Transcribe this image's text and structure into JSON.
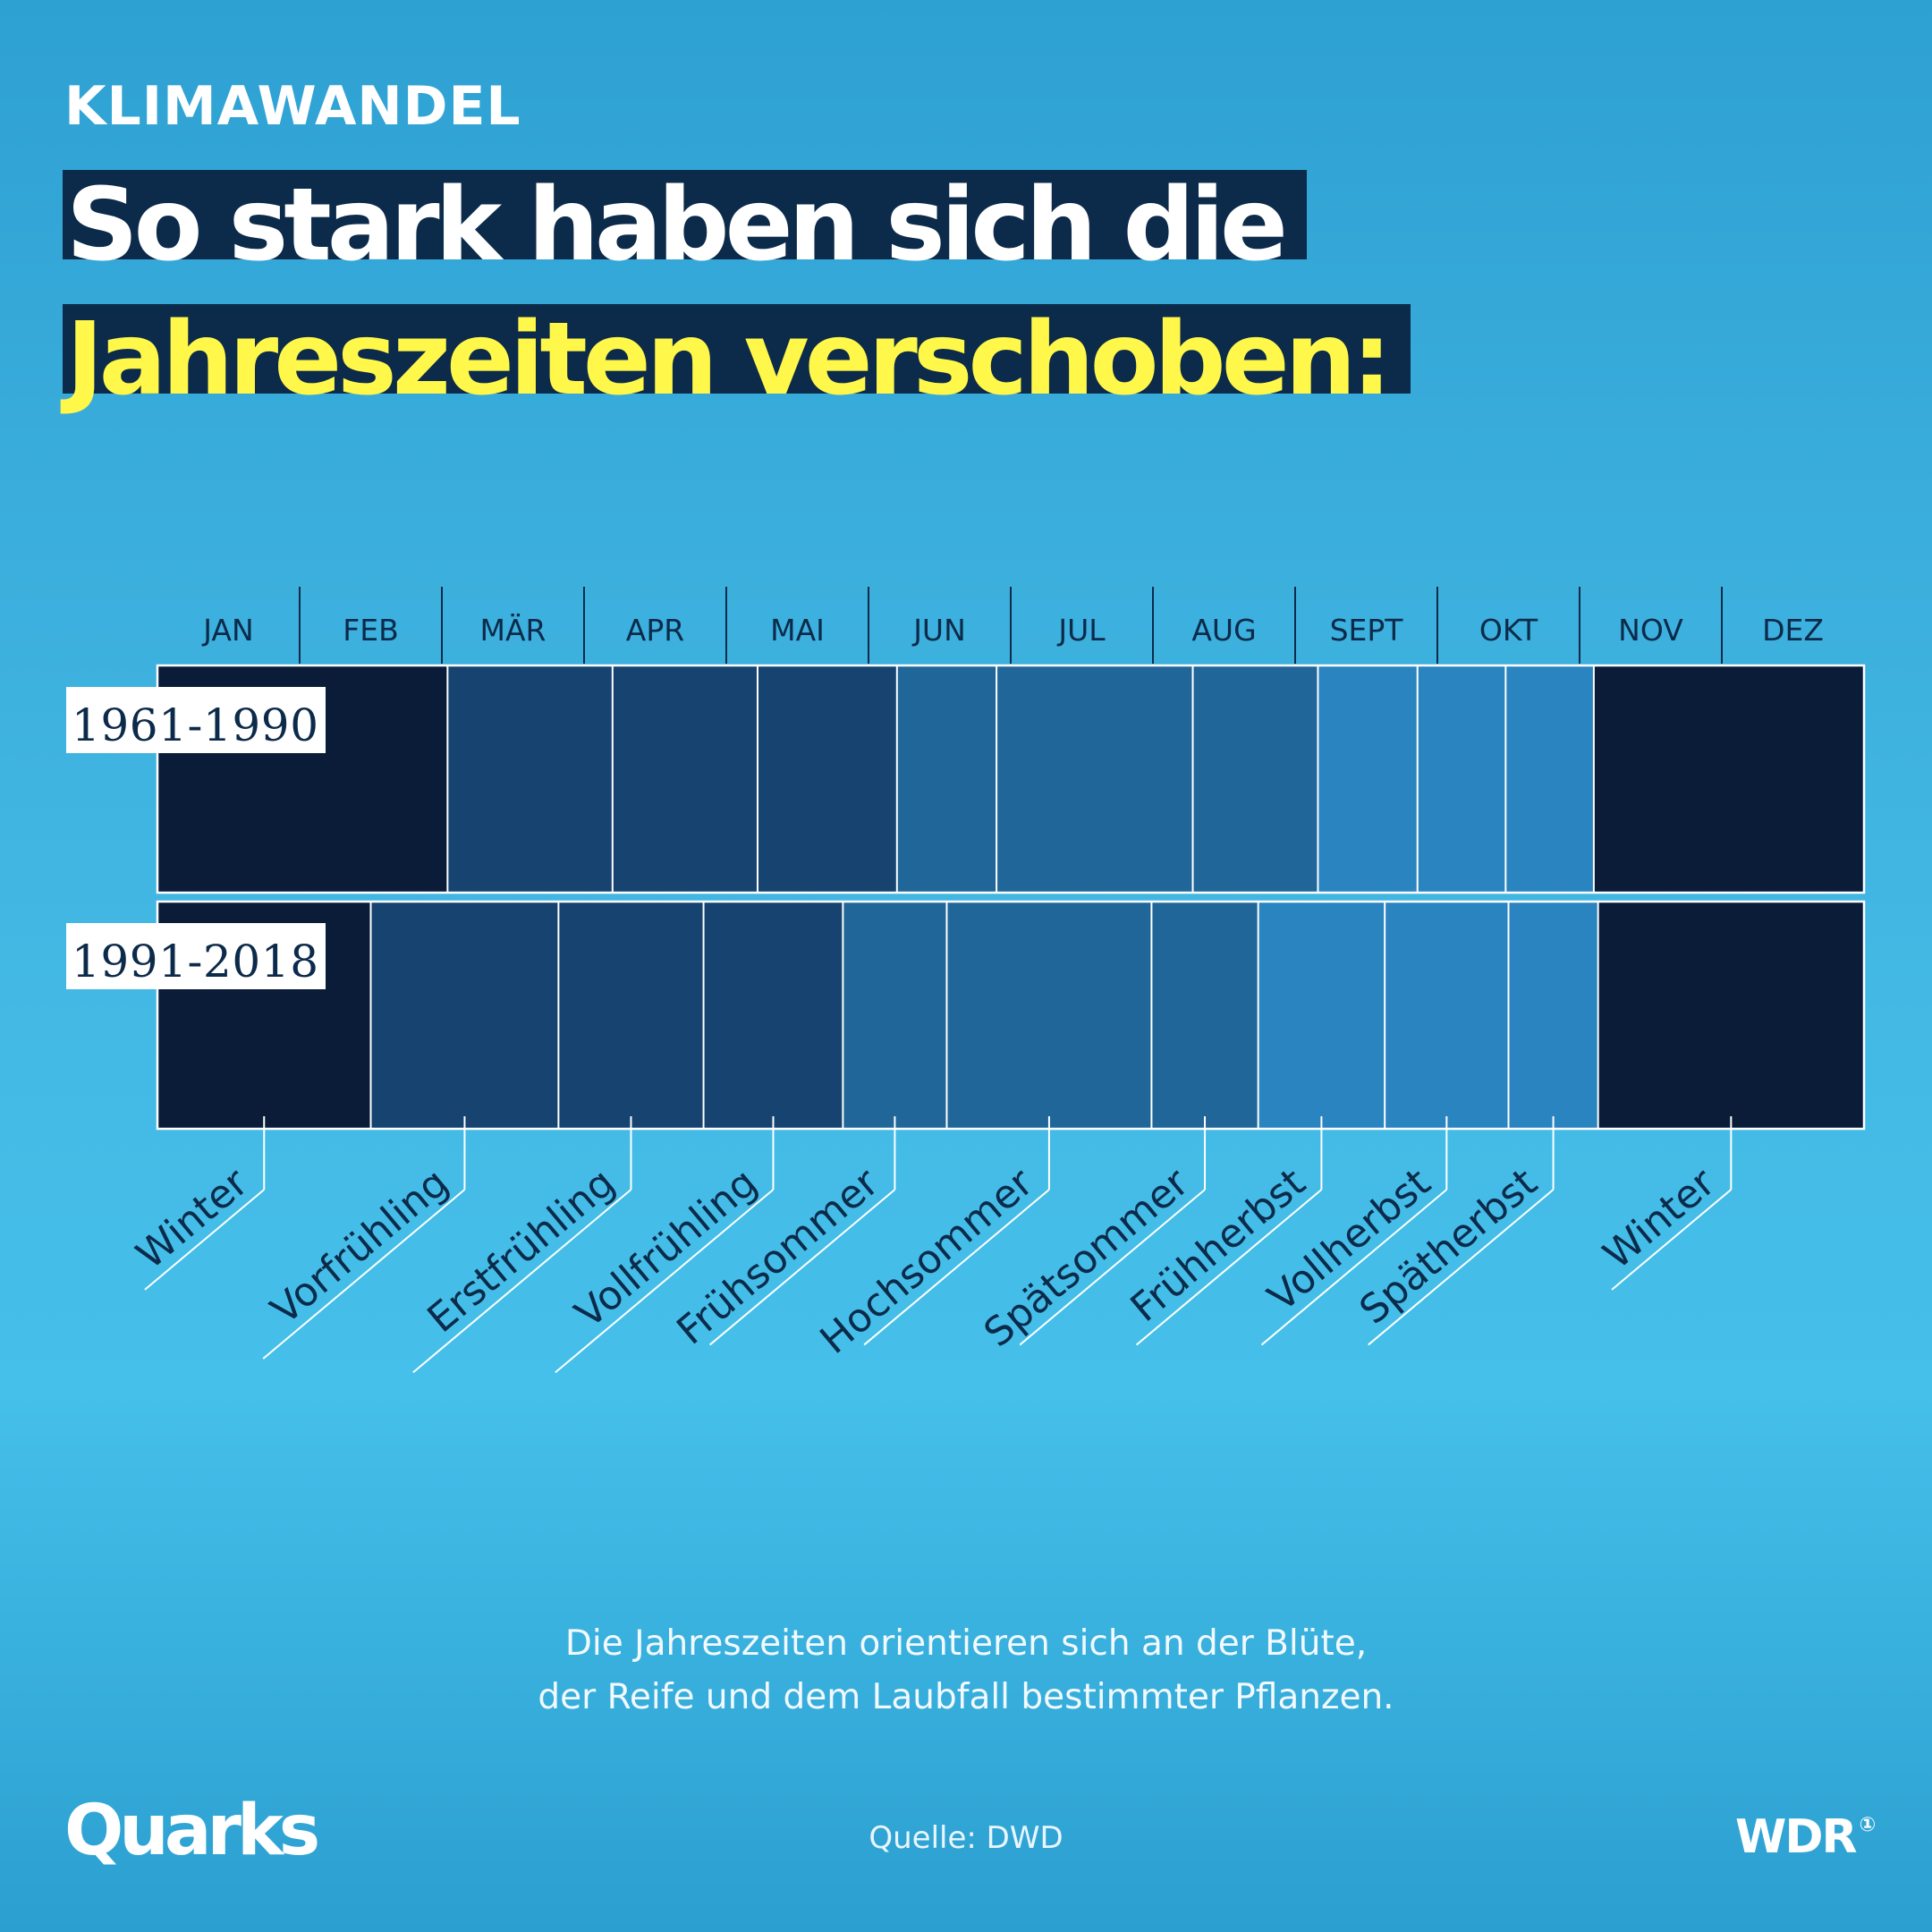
{
  "header": {
    "kicker": "KLIMAWANDEL",
    "headline_line1": "So stark haben sich die",
    "headline_line2": "Jahreszeiten verschoben:"
  },
  "colors": {
    "winter": "#0a1c38",
    "spring": "#16436f",
    "summer": "#216699",
    "autumn": "#2a84bf",
    "highlight_yellow": "#fff84a",
    "headline_bg": "#0c2a4a"
  },
  "chart_data": {
    "type": "table",
    "months": [
      "JAN",
      "FEB",
      "MÄR",
      "APR",
      "MAI",
      "JUN",
      "JUL",
      "AUG",
      "SEPT",
      "OKT",
      "NOV",
      "DEZ"
    ],
    "season_labels": [
      "Winter",
      "Vorfrühling",
      "Erstfrühling",
      "Vollfrühling",
      "Frühsommer",
      "Hochsommer",
      "Spätsommer",
      "Frühherbst",
      "Vollherbst",
      "Spätherbst",
      "Winter"
    ],
    "season_groups": [
      "winter",
      "spring",
      "spring",
      "spring",
      "summer",
      "summer",
      "summer",
      "autumn",
      "autumn",
      "autumn",
      "winter"
    ],
    "periods": [
      {
        "name": "1961-1990",
        "boundaries": [
          0,
          2.04,
          3.2,
          4.22,
          5.2,
          5.9,
          7.28,
          8.16,
          8.86,
          9.48,
          10.1,
          12
        ]
      },
      {
        "name": "1991-2018",
        "boundaries": [
          0,
          1.5,
          2.82,
          3.84,
          4.82,
          5.55,
          6.99,
          7.74,
          8.63,
          9.5,
          10.13,
          12
        ]
      }
    ]
  },
  "footer": {
    "note_line1": "Die Jahreszeiten orientieren sich an der Blüte,",
    "note_line2": "der Reife und dem Laubfall bestimmter Pflanzen.",
    "source": "Quelle: DWD",
    "logo_left": "Quarks",
    "logo_right": "WDR"
  }
}
